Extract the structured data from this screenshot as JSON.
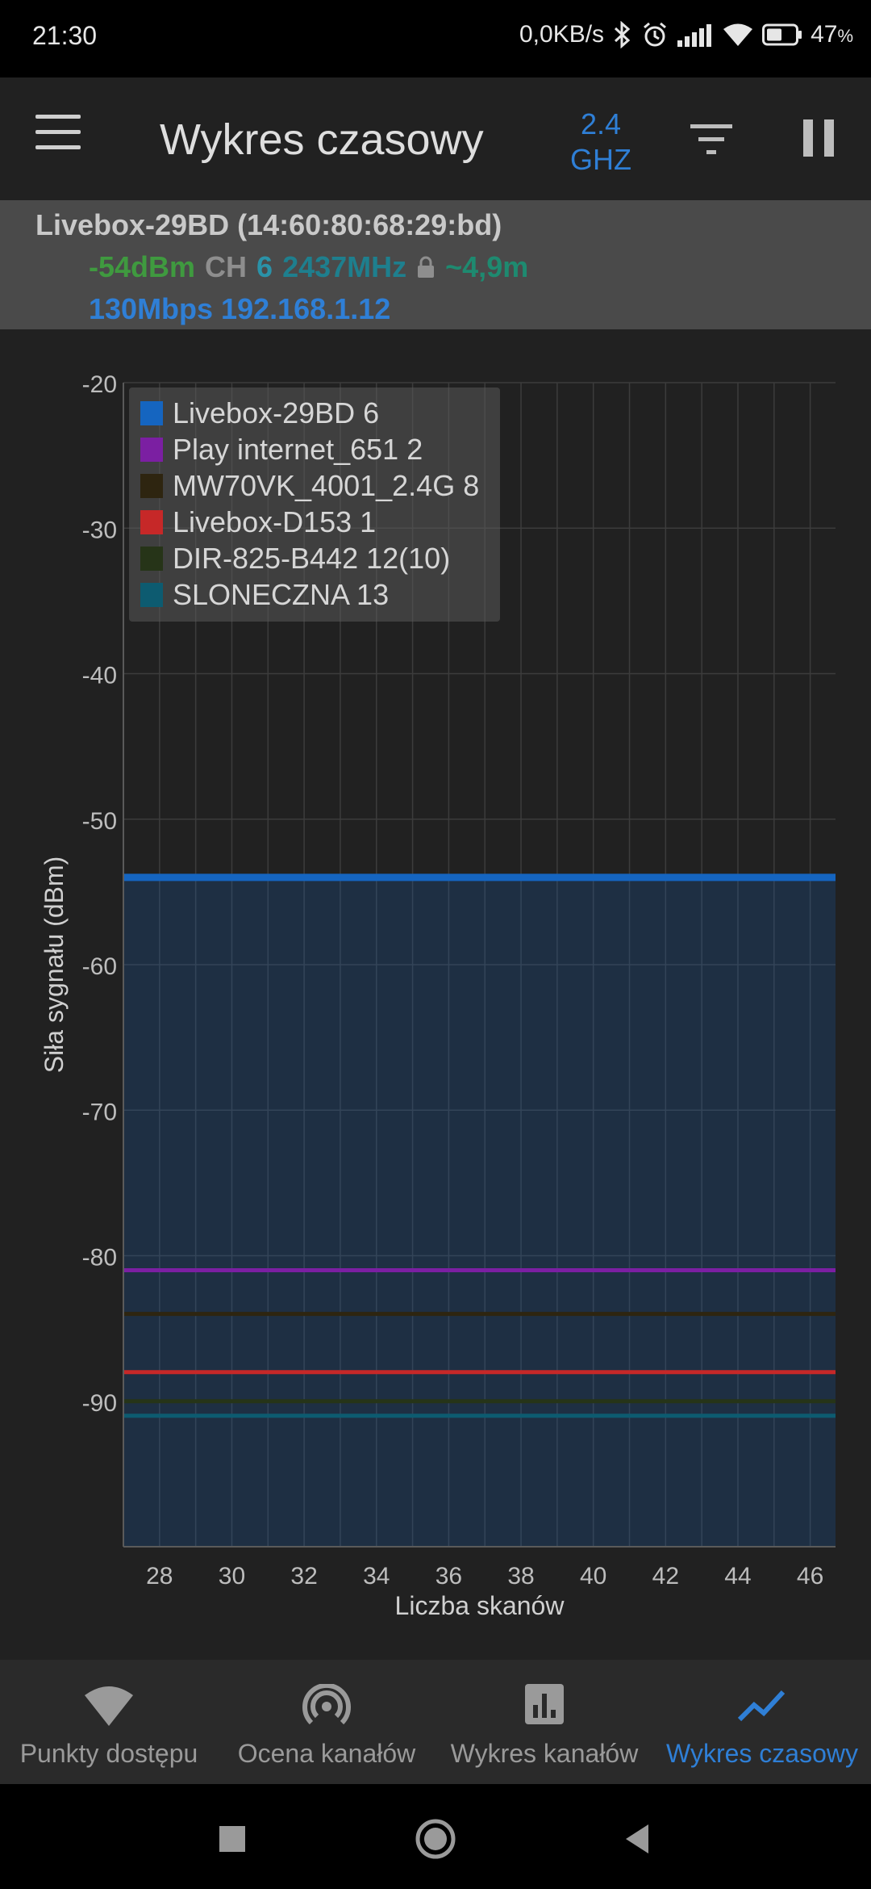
{
  "status_bar": {
    "time": "21:30",
    "net_speed": "0,0KB/s",
    "battery": "47",
    "battery_unit": "%",
    "icons": [
      "bluetooth-icon",
      "alarm-icon",
      "cell-signal-icon",
      "wifi-icon",
      "battery-icon"
    ]
  },
  "app_bar": {
    "title": "Wykres czasowy",
    "band_line1": "2.4",
    "band_line2": "GHZ",
    "icons": [
      "menu-icon",
      "filter-icon",
      "pause-icon"
    ],
    "accent_color": "#2f7fd6"
  },
  "connection": {
    "ssid_mac": "Livebox-29BD (14:60:80:68:29:bd)",
    "signal": "-54dBm",
    "ch_label": "CH",
    "channel": "6",
    "frequency": "2437MHz",
    "distance": "~4,9m",
    "rate_ip": "130Mbps 192.168.1.12"
  },
  "chart_data": {
    "type": "line",
    "ylabel": "Siła sygnału (dBm)",
    "xlabel": "Liczba skanów",
    "ylim": [
      -100,
      -20
    ],
    "xlim": [
      27,
      46.7
    ],
    "y_ticks": [
      "-20",
      "-30",
      "-40",
      "-50",
      "-60",
      "-70",
      "-80",
      "-90"
    ],
    "x_ticks": [
      "28",
      "30",
      "32",
      "34",
      "36",
      "38",
      "40",
      "42",
      "44",
      "46"
    ],
    "grid": true,
    "legend_placement": "top-left",
    "series": [
      {
        "name": "Livebox-29BD 6",
        "color": "#1565c0",
        "x": [
          27,
          46.7
        ],
        "y": [
          -54,
          -54
        ],
        "filled": true
      },
      {
        "name": "Play internet_651 2",
        "color": "#7b1fa2",
        "x": [
          27,
          46.7
        ],
        "y": [
          -81,
          -81
        ]
      },
      {
        "name": "MW70VK_4001_2.4G 8",
        "color": "#2e2510",
        "x": [
          27,
          46.7
        ],
        "y": [
          -84,
          -84
        ]
      },
      {
        "name": "Livebox-D153 1",
        "color": "#c62828",
        "x": [
          27,
          46.7
        ],
        "y": [
          -88,
          -88
        ]
      },
      {
        "name": "DIR-825-B442 12(10)",
        "color": "#263418",
        "x": [
          27,
          46.7
        ],
        "y": [
          -90,
          -90
        ]
      },
      {
        "name": "SLONECZNA 13",
        "color": "#0d5b70",
        "x": [
          27,
          46.7
        ],
        "y": [
          -91,
          -91
        ]
      }
    ]
  },
  "bottom_nav": {
    "items": [
      {
        "label": "Punkty dostępu",
        "icon": "wifi-access-points-icon"
      },
      {
        "label": "Ocena kanałów",
        "icon": "channel-rating-icon"
      },
      {
        "label": "Wykres kanałów",
        "icon": "channel-graph-icon"
      },
      {
        "label": "Wykres czasowy",
        "icon": "time-graph-icon"
      }
    ],
    "active": 3
  },
  "system_nav": {
    "icons": [
      "recents-square-icon",
      "home-circle-icon",
      "back-triangle-icon"
    ]
  }
}
